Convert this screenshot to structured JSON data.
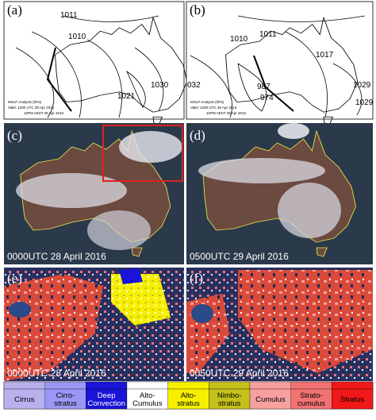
{
  "panels": [
    {
      "label": "(a)",
      "texts": [
        "1011",
        "1010",
        "1030",
        "1021"
      ],
      "note": [
        "MSLP Analysis (hPa)",
        "Valid: 1200 UTC 28 Apr 2016",
        "10PM AEST 28 Apr 2016"
      ]
    },
    {
      "label": "(b)",
      "texts": [
        "1011",
        "1010",
        "1017",
        "987",
        "974",
        "1029",
        "1029",
        "032"
      ],
      "note": [
        "MSLP Analysis (hPa)",
        "Valid: 1200 UTC 29 Apr 2016",
        "10PM AEST 29 Apr 2016"
      ]
    },
    {
      "label": "(c)",
      "time": "0000UTC  28 April 2016"
    },
    {
      "label": "(d)",
      "time": "0500UTC  29 April 2016"
    },
    {
      "label": "(e)",
      "time": "0000UTC  28 April 2016"
    },
    {
      "label": "(f)",
      "time": "0050UTC  29 April 2016"
    }
  ],
  "legend": {
    "items": [
      {
        "lines": [
          "Cirrus"
        ],
        "color": "#b9b0ee",
        "text_color": "#000000"
      },
      {
        "lines": [
          "Cirro-",
          "stratus"
        ],
        "color": "#9a98f4",
        "text_color": "#000000"
      },
      {
        "lines": [
          "Deep",
          "Convection"
        ],
        "color": "#1a14d8",
        "text_color": "#ffffff"
      },
      {
        "lines": [
          "Alto-",
          "Cumulus"
        ],
        "color": "#ffffff",
        "text_color": "#000000"
      },
      {
        "lines": [
          "Alto-",
          "stratus"
        ],
        "color": "#f6f000",
        "text_color": "#000000"
      },
      {
        "lines": [
          "Nimbo-",
          "stratus"
        ],
        "color": "#c4c21a",
        "text_color": "#000000"
      },
      {
        "lines": [
          "Cumulus"
        ],
        "color": "#f7a0a0",
        "text_color": "#000000"
      },
      {
        "lines": [
          "Strato-",
          "cumulus"
        ],
        "color": "#f27272",
        "text_color": "#000000"
      },
      {
        "lines": [
          "Stratus"
        ],
        "color": "#f01818",
        "text_color": "#000000"
      }
    ]
  }
}
